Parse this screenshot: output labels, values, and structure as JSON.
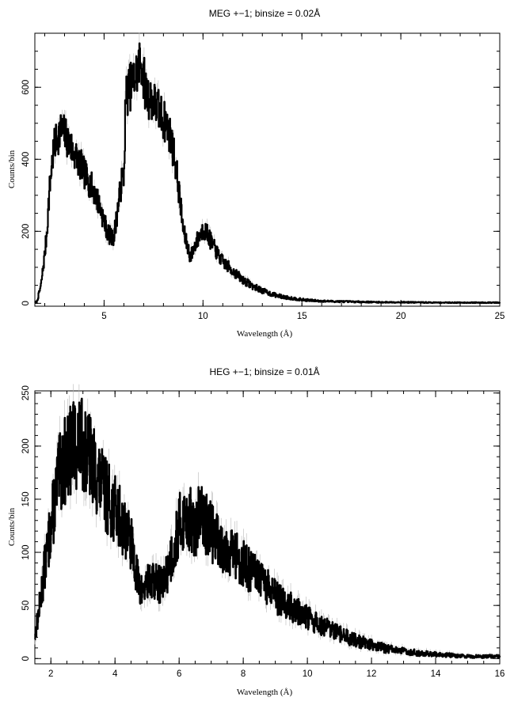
{
  "chart_data": [
    {
      "type": "line",
      "title": "MEG +−1; binsize = 0.02Å",
      "xlabel": "Wavelength (Å)",
      "ylabel": "Counts/bin",
      "xlim": [
        1.5,
        25
      ],
      "ylim": [
        -8,
        750
      ],
      "xticks": [
        5,
        10,
        15,
        20,
        25
      ],
      "xtick_labels": [
        "5",
        "10",
        "15",
        "20",
        "25"
      ],
      "yticks": [
        0,
        200,
        400,
        600
      ],
      "ytick_labels": [
        "0",
        "200",
        "400",
        "600"
      ],
      "grid": false,
      "step": 0.02,
      "series": [
        {
          "x": [
            1.5,
            1.6,
            1.8,
            2.0,
            2.1,
            2.2,
            2.3,
            2.4,
            2.5,
            2.6,
            2.8,
            3.0,
            3.2,
            3.5,
            3.8,
            4.0,
            4.2,
            4.5,
            4.8,
            5.0,
            5.2,
            5.4,
            5.5,
            5.7,
            5.9,
            6.0,
            6.05,
            6.1,
            6.3,
            6.5,
            6.7,
            6.85,
            6.95,
            7.1,
            7.3,
            7.5,
            7.8,
            8.0,
            8.2,
            8.4,
            8.6,
            8.8,
            9.0,
            9.2,
            9.35,
            9.45,
            9.6,
            9.8,
            10.0,
            10.2,
            10.4,
            10.6,
            10.8,
            11.0,
            11.5,
            12.0,
            12.5,
            13.0,
            13.5,
            14.0,
            14.5,
            15.0,
            15.5,
            16.0,
            17.0,
            18.0,
            19.0,
            20.0,
            22.0,
            25.0
          ],
          "y": [
            2,
            5,
            50,
            140,
            200,
            290,
            360,
            410,
            440,
            460,
            480,
            470,
            445,
            415,
            385,
            360,
            340,
            310,
            265,
            225,
            195,
            180,
            190,
            270,
            345,
            360,
            500,
            580,
            600,
            620,
            650,
            680,
            640,
            590,
            570,
            560,
            530,
            510,
            490,
            450,
            390,
            300,
            200,
            160,
            130,
            140,
            165,
            185,
            205,
            195,
            170,
            150,
            130,
            115,
            90,
            65,
            48,
            35,
            25,
            18,
            14,
            10,
            8,
            6,
            5,
            4,
            3,
            3,
            2,
            2
          ]
        }
      ]
    },
    {
      "type": "line",
      "title": "HEG +−1; binsize = 0.01Å",
      "xlabel": "Wavelength (Å)",
      "ylabel": "Counts/bin",
      "xlim": [
        1.5,
        16
      ],
      "ylim": [
        -5,
        252
      ],
      "xticks": [
        2,
        4,
        6,
        8,
        10,
        12,
        14,
        16
      ],
      "xtick_labels": [
        "2",
        "4",
        "6",
        "8",
        "10",
        "12",
        "14",
        "16"
      ],
      "yticks": [
        0,
        50,
        100,
        150,
        200,
        250
      ],
      "ytick_labels": [
        "0",
        "50",
        "100",
        "150",
        "200",
        "250"
      ],
      "grid": false,
      "step": 0.01,
      "series": [
        {
          "x": [
            1.5,
            1.6,
            1.7,
            1.8,
            1.9,
            2.0,
            2.1,
            2.2,
            2.4,
            2.6,
            2.8,
            3.0,
            3.2,
            3.4,
            3.6,
            3.8,
            4.0,
            4.2,
            4.4,
            4.6,
            4.7,
            4.8,
            5.0,
            5.2,
            5.4,
            5.5,
            5.6,
            5.8,
            6.0,
            6.2,
            6.4,
            6.5,
            6.6,
            6.8,
            7.0,
            7.2,
            7.5,
            7.8,
            8.0,
            8.2,
            8.5,
            8.8,
            9.0,
            9.5,
            10.0,
            10.5,
            11.0,
            11.5,
            12.0,
            12.5,
            13.0,
            13.5,
            14.0,
            14.5,
            15.0,
            15.5,
            16.0
          ],
          "y": [
            22,
            40,
            62,
            85,
            105,
            125,
            145,
            165,
            185,
            195,
            205,
            200,
            190,
            175,
            160,
            150,
            140,
            130,
            118,
            95,
            75,
            62,
            70,
            72,
            70,
            68,
            80,
            100,
            125,
            135,
            128,
            115,
            135,
            130,
            120,
            110,
            105,
            95,
            90,
            82,
            75,
            65,
            58,
            48,
            38,
            30,
            23,
            17,
            13,
            9,
            7,
            5,
            4,
            3,
            2,
            2,
            2
          ]
        }
      ]
    }
  ]
}
